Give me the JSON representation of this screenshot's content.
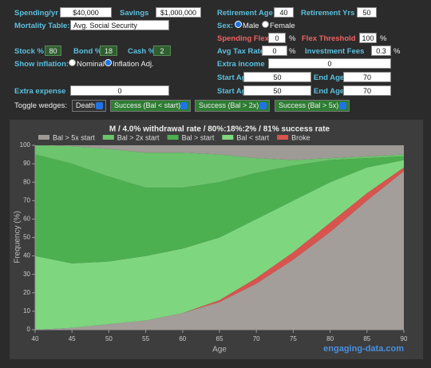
{
  "form": {
    "spending_label": "Spending/yr",
    "spending": "$40,000",
    "savings_label": "Savings",
    "savings": "$1,000,000",
    "retirement_age_label": "Retirement Age",
    "retirement_age": 40,
    "retirement_yrs_label": "Retirement Yrs",
    "retirement_yrs": 50,
    "mortality_label": "Mortality Table:",
    "mortality": "Avg. Social Security",
    "sex_label": "Sex:",
    "male": "Male",
    "female": "Female",
    "spending_flex_label": "Spending Flex",
    "spending_flex": 0,
    "flex_threshold_label": "Flex Threshold",
    "flex_threshold": 100,
    "percent": "%",
    "stock_label": "Stock %",
    "stock": 80,
    "bond_label": "Bond %",
    "bond": 18,
    "cash_label": "Cash %",
    "cash": 2,
    "tax_label": "Avg Tax Rate",
    "tax": 0,
    "fees_label": "Investment Fees",
    "fees": 0.3,
    "inflation_label": "Show inflation:",
    "nominal": "Nominal",
    "inflation_adj": "Inflation Adj.",
    "extra_income_label": "Extra income",
    "extra_income": 0,
    "income_start_label": "Start Age",
    "income_start": 50,
    "income_end_label": "End Age",
    "income_end": 70,
    "extra_expense_label": "Extra expense",
    "extra_expense": 0,
    "expense_start_label": "Start Age",
    "expense_start": 50,
    "expense_end_label": "End Age",
    "expense_end": 70,
    "wedges_label": "Toggle wedges:",
    "wedges": [
      "Death",
      "Success (Bal < start)",
      "Success (Bal > 2x)",
      "Success (Bal > 5x)"
    ]
  },
  "chart_data": {
    "type": "stacked_area",
    "title": "M / 4.0% withdrawal rate / 80%:18%:2% / 81% success rate",
    "x_label": "Age",
    "y_label": "Frequency (%)",
    "x": [
      40,
      45,
      50,
      55,
      60,
      65,
      70,
      75,
      80,
      85,
      90
    ],
    "series": [
      {
        "color": "#a39e99",
        "values": [
          0,
          1,
          3,
          5,
          9,
          15,
          25,
          38,
          53,
          70,
          86
        ]
      },
      {
        "name": "Broke",
        "color": "#d9534f",
        "values": [
          0,
          0,
          0,
          0,
          0,
          1,
          3,
          4,
          5,
          4,
          2
        ]
      },
      {
        "name": "Bal < start",
        "color": "#7ed67e",
        "values": [
          40,
          35,
          34,
          35,
          35,
          34,
          32,
          28,
          22,
          14,
          4
        ]
      },
      {
        "name": "Bal > start",
        "color": "#4caf50",
        "values": [
          55,
          54,
          46,
          37,
          33,
          30,
          25,
          19,
          12,
          5,
          2
        ]
      },
      {
        "name": "Bal > 2x start",
        "color": "#6cc46c",
        "values": [
          5,
          9.5,
          15,
          19,
          19,
          15,
          8,
          3,
          1,
          1,
          1
        ]
      },
      {
        "name": "Bal > 5x start",
        "color": "#9e9a96",
        "values": [
          0,
          0.5,
          2,
          4,
          4,
          5,
          7,
          8,
          7,
          6,
          5
        ]
      }
    ],
    "xlim": [
      40,
      90
    ],
    "xticks": [
      40,
      45,
      50,
      55,
      60,
      65,
      70,
      75,
      80,
      85,
      90
    ],
    "ylim": [
      0,
      100
    ],
    "yticks": [
      0,
      10,
      20,
      30,
      40,
      50,
      60,
      70,
      80,
      90,
      100
    ],
    "grid": false,
    "watermark": "engaging-data.com"
  }
}
